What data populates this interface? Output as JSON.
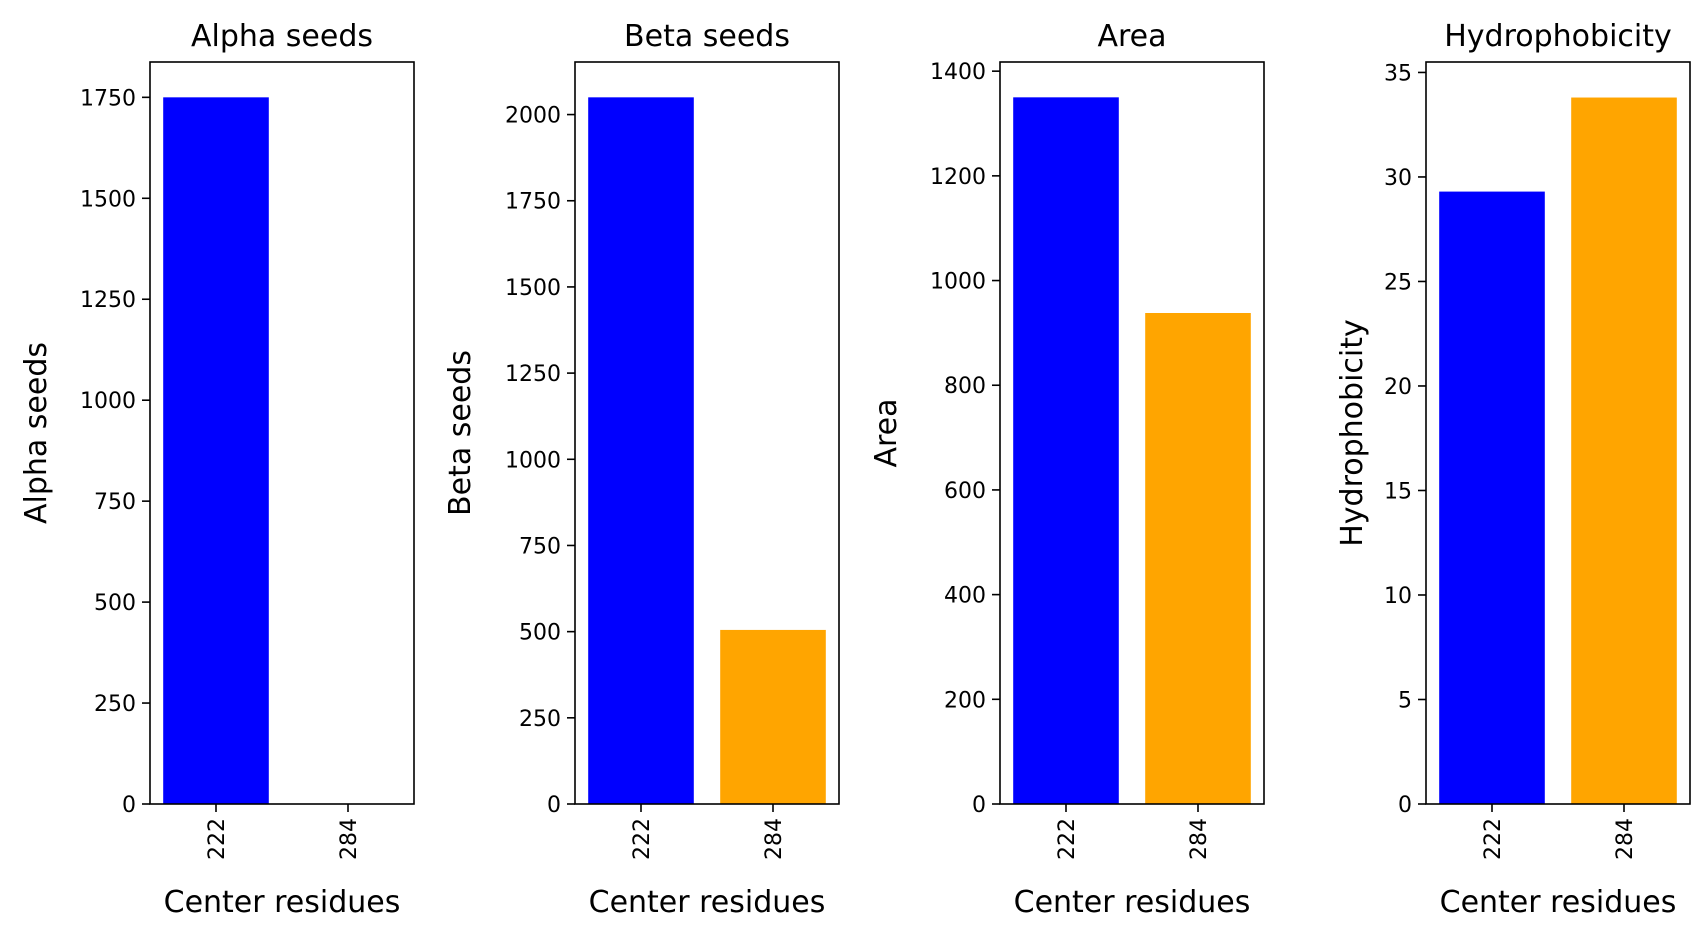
{
  "chart_data": [
    {
      "type": "bar",
      "title": "Alpha seeds",
      "xlabel": "Center residues",
      "ylabel": "Alpha seeds",
      "categories": [
        "222",
        "284"
      ],
      "values": [
        1750,
        0
      ],
      "bar_colors": [
        "#0000ff",
        "#ffa500"
      ],
      "ylim": [
        0,
        1837.5
      ],
      "yticks": [
        0,
        250,
        500,
        750,
        1000,
        1250,
        1500,
        1750
      ],
      "grid": false,
      "legend": "none"
    },
    {
      "type": "bar",
      "title": "Beta seeds",
      "xlabel": "Center residues",
      "ylabel": "Beta seeds",
      "categories": [
        "222",
        "284"
      ],
      "values": [
        2050,
        505
      ],
      "bar_colors": [
        "#0000ff",
        "#ffa500"
      ],
      "ylim": [
        0,
        2152.5
      ],
      "yticks": [
        0,
        250,
        500,
        750,
        1000,
        1250,
        1500,
        1750,
        2000
      ],
      "grid": false,
      "legend": "none"
    },
    {
      "type": "bar",
      "title": "Area",
      "xlabel": "Center residues",
      "ylabel": "Area",
      "categories": [
        "222",
        "284"
      ],
      "values": [
        1350,
        938
      ],
      "bar_colors": [
        "#0000ff",
        "#ffa500"
      ],
      "ylim": [
        0,
        1417.5
      ],
      "yticks": [
        0,
        200,
        400,
        600,
        800,
        1000,
        1200,
        1400
      ],
      "grid": false,
      "legend": "none"
    },
    {
      "type": "bar",
      "title": "Hydrophobicity",
      "xlabel": "Center residues",
      "ylabel": "Hydrophobicity",
      "categories": [
        "222",
        "284"
      ],
      "values": [
        29.3,
        33.8
      ],
      "bar_colors": [
        "#0000ff",
        "#ffa500"
      ],
      "ylim": [
        0,
        35.5
      ],
      "yticks": [
        0,
        5,
        10,
        15,
        20,
        25,
        30,
        35
      ],
      "grid": false,
      "legend": "none"
    }
  ]
}
